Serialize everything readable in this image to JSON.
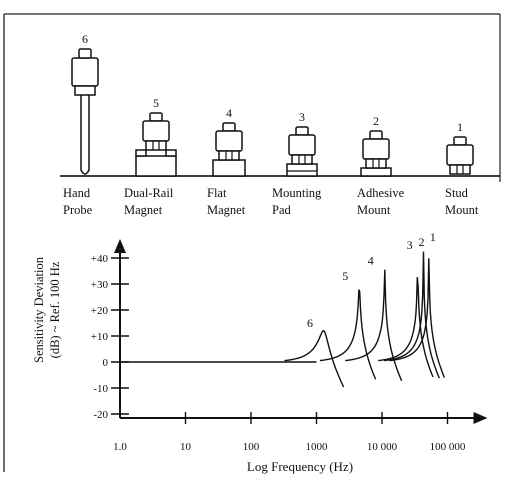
{
  "mounts": [
    {
      "number": "1",
      "label_lines": [
        "Stud",
        "Mount"
      ],
      "style": "stud"
    },
    {
      "number": "2",
      "label_lines": [
        "Adhesive",
        "Mount"
      ],
      "style": "adhesive"
    },
    {
      "number": "3",
      "label_lines": [
        "Mounting",
        "Pad"
      ],
      "style": "pad"
    },
    {
      "number": "4",
      "label_lines": [
        "Flat",
        "Magnet"
      ],
      "style": "flat"
    },
    {
      "number": "5",
      "label_lines": [
        "Dual-Rail",
        "Magnet"
      ],
      "style": "dualrail"
    },
    {
      "number": "6",
      "label_lines": [
        "Hand",
        "Probe"
      ],
      "style": "probe"
    }
  ],
  "chart_data": {
    "type": "line",
    "xlabel": "Log Frequency (Hz)",
    "ylabel_lines": [
      "Sensitivity Deviation",
      "(dB) ~ Ref. 100 Hz"
    ],
    "xscale": "log",
    "xlim": [
      1,
      100000
    ],
    "ylim": [
      -20,
      45
    ],
    "x_tick_labels": [
      {
        "value": 1,
        "label": "1.0"
      },
      {
        "value": 10,
        "label": "10"
      },
      {
        "value": 100,
        "label": "100"
      },
      {
        "value": 1000,
        "label": "1000"
      },
      {
        "value": 10000,
        "label": "10 000"
      },
      {
        "value": 100000,
        "label": "100 000"
      }
    ],
    "y_tick_labels": [
      {
        "value": 40,
        "label": "+40"
      },
      {
        "value": 30,
        "label": "+30"
      },
      {
        "value": 20,
        "label": "+20"
      },
      {
        "value": 10,
        "label": "+10"
      },
      {
        "value": 0,
        "label": "0"
      },
      {
        "value": -10,
        "label": "-10"
      },
      {
        "value": -20,
        "label": "-20"
      }
    ],
    "series": [
      {
        "name": "6",
        "resonance_hz": 1300,
        "peak_db": 12,
        "end_hz": 2600
      },
      {
        "name": "5",
        "resonance_hz": 4500,
        "peak_db": 30,
        "end_hz": 8000
      },
      {
        "name": "4",
        "resonance_hz": 11000,
        "peak_db": 36,
        "end_hz": 20000
      },
      {
        "name": "3",
        "resonance_hz": 35000,
        "peak_db": 42,
        "end_hz": 60000
      },
      {
        "name": "2",
        "resonance_hz": 43000,
        "peak_db": 43,
        "end_hz": 75000
      },
      {
        "name": "1",
        "resonance_hz": 52000,
        "peak_db": 45,
        "end_hz": 90000
      }
    ]
  }
}
